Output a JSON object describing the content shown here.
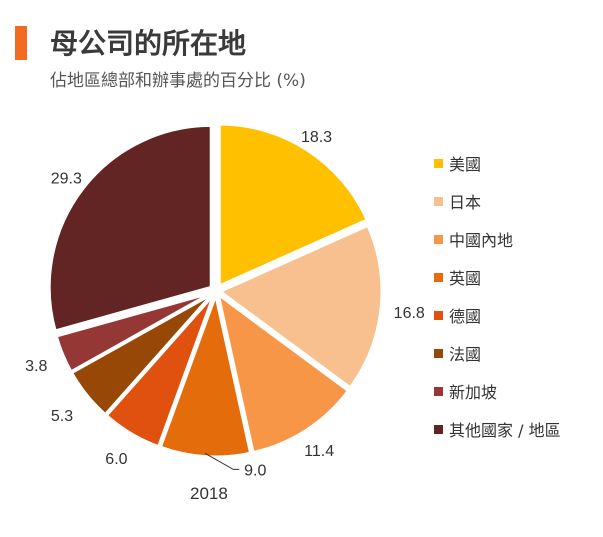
{
  "header": {
    "title": "母公司的所在地",
    "subtitle": "佔地區總部和辦事處的百分比 (%)",
    "accent_color": "#F26B21"
  },
  "chart_data": {
    "type": "pie",
    "year_label": "2018",
    "series": [
      {
        "name": "美國",
        "value": 18.3,
        "label": "18.3",
        "color": "#FFC000"
      },
      {
        "name": "日本",
        "value": 16.8,
        "label": "16.8",
        "color": "#F8C08E"
      },
      {
        "name": "中國內地",
        "value": 11.4,
        "label": "11.4",
        "color": "#F79646"
      },
      {
        "name": "英國",
        "value": 9.0,
        "label": "9.0",
        "color": "#E46C0A"
      },
      {
        "name": "德國",
        "value": 6.0,
        "label": "6.0",
        "color": "#E0500F"
      },
      {
        "name": "法國",
        "value": 5.3,
        "label": "5.3",
        "color": "#974806"
      },
      {
        "name": "新加坡",
        "value": 3.8,
        "label": "3.8",
        "color": "#953735"
      },
      {
        "name": "其他國家 / 地區",
        "value": 29.3,
        "label": "29.3",
        "color": "#632523"
      }
    ],
    "legend_position": "right"
  }
}
